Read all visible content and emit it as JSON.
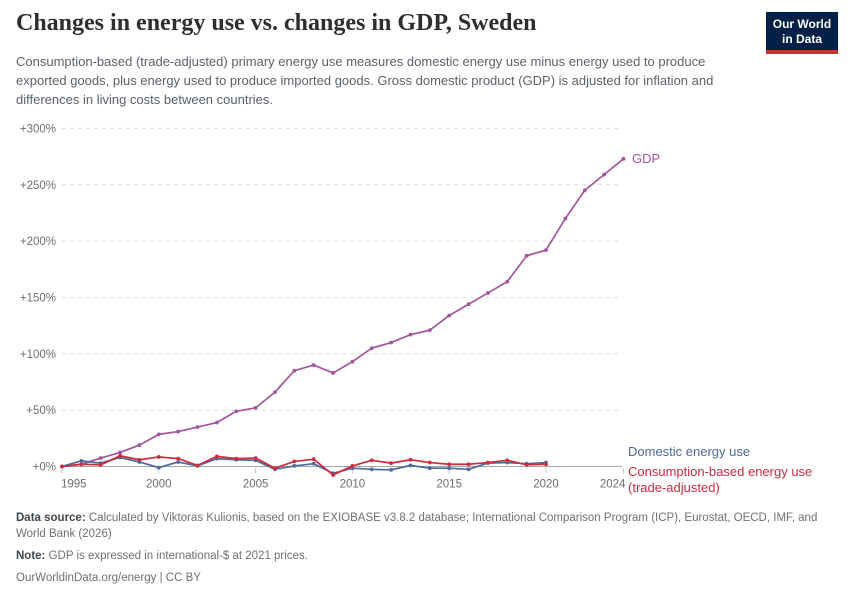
{
  "header": {
    "title": "Changes in energy use vs. changes in GDP, Sweden",
    "subtitle": "Consumption-based (trade-adjusted) primary energy use measures domestic energy use minus energy used to produce exported goods, plus energy used to produce imported goods. Gross domestic product (GDP) is adjusted for inflation and differences in living costs between countries.",
    "logo": {
      "line1": "Our World",
      "line2": "in Data"
    }
  },
  "chart_data": {
    "type": "line",
    "title": "Changes in energy use vs. changes in GDP, Sweden",
    "x_axis": {
      "ticks": [
        1995,
        2000,
        2005,
        2010,
        2015,
        2020,
        2024
      ],
      "range": [
        1995,
        2024
      ]
    },
    "y_axis": {
      "unit": "%",
      "grid": "dashed",
      "range": [
        -10,
        300
      ],
      "ticks": [
        {
          "label": "+0%",
          "value": 0
        },
        {
          "label": "+50%",
          "value": 50
        },
        {
          "label": "+100%",
          "value": 100
        },
        {
          "label": "+150%",
          "value": 150
        },
        {
          "label": "+200%",
          "value": 200
        },
        {
          "label": "+250%",
          "value": 250
        },
        {
          "label": "+300%",
          "value": 300
        }
      ]
    },
    "series": [
      {
        "name": "GDP",
        "color": "#a2559c",
        "start_year": 1995,
        "values": [
          0,
          2,
          7.5,
          12.5,
          19,
          28.5,
          31,
          35,
          39,
          49,
          52,
          66,
          85,
          90,
          83,
          93,
          105,
          110,
          117,
          121,
          134,
          144,
          154,
          164,
          187,
          192,
          220,
          245,
          259,
          273
        ]
      },
      {
        "name": "Domestic energy use",
        "color": "#4c6a9c",
        "start_year": 1995,
        "values": [
          0,
          5,
          3,
          8,
          4,
          -1,
          4,
          0.5,
          7,
          6,
          5.5,
          -2.5,
          0.5,
          2.5,
          -6,
          -1.5,
          -2.5,
          -3,
          1,
          -1.5,
          -1.5,
          -2.5,
          3,
          3.5,
          2.5,
          3.5
        ]
      },
      {
        "name": "Consumption-based energy use (trade-adjusted)",
        "color": "#ce2b3d",
        "start_year": 1995,
        "values": [
          0,
          2,
          1.5,
          9.5,
          6,
          8.5,
          7,
          1,
          9,
          7,
          7.5,
          -1.5,
          4.5,
          6.5,
          -7.5,
          0.5,
          5.5,
          3,
          6,
          3.5,
          2,
          2,
          3.5,
          5.5,
          1.5,
          2
        ]
      }
    ],
    "legend_position": "right-of-line-ends"
  },
  "legend": {
    "gdp_label": "GDP",
    "domestic_label": "Domestic energy use",
    "consumption_label": "Consumption-based energy use (trade-adjusted)"
  },
  "footer": {
    "source_label": "Data source:",
    "source_text": " Calculated by Viktoras Kulionis, based on the EXIOBASE v3.8.2 database; International Comparison Program (ICP), Eurostat, OECD, IMF, and World Bank (2026)",
    "note_label": "Note:",
    "note_text": " GDP is expressed in international-$ at 2021 prices.",
    "citation": "OurWorldinData.org/energy | CC BY"
  }
}
